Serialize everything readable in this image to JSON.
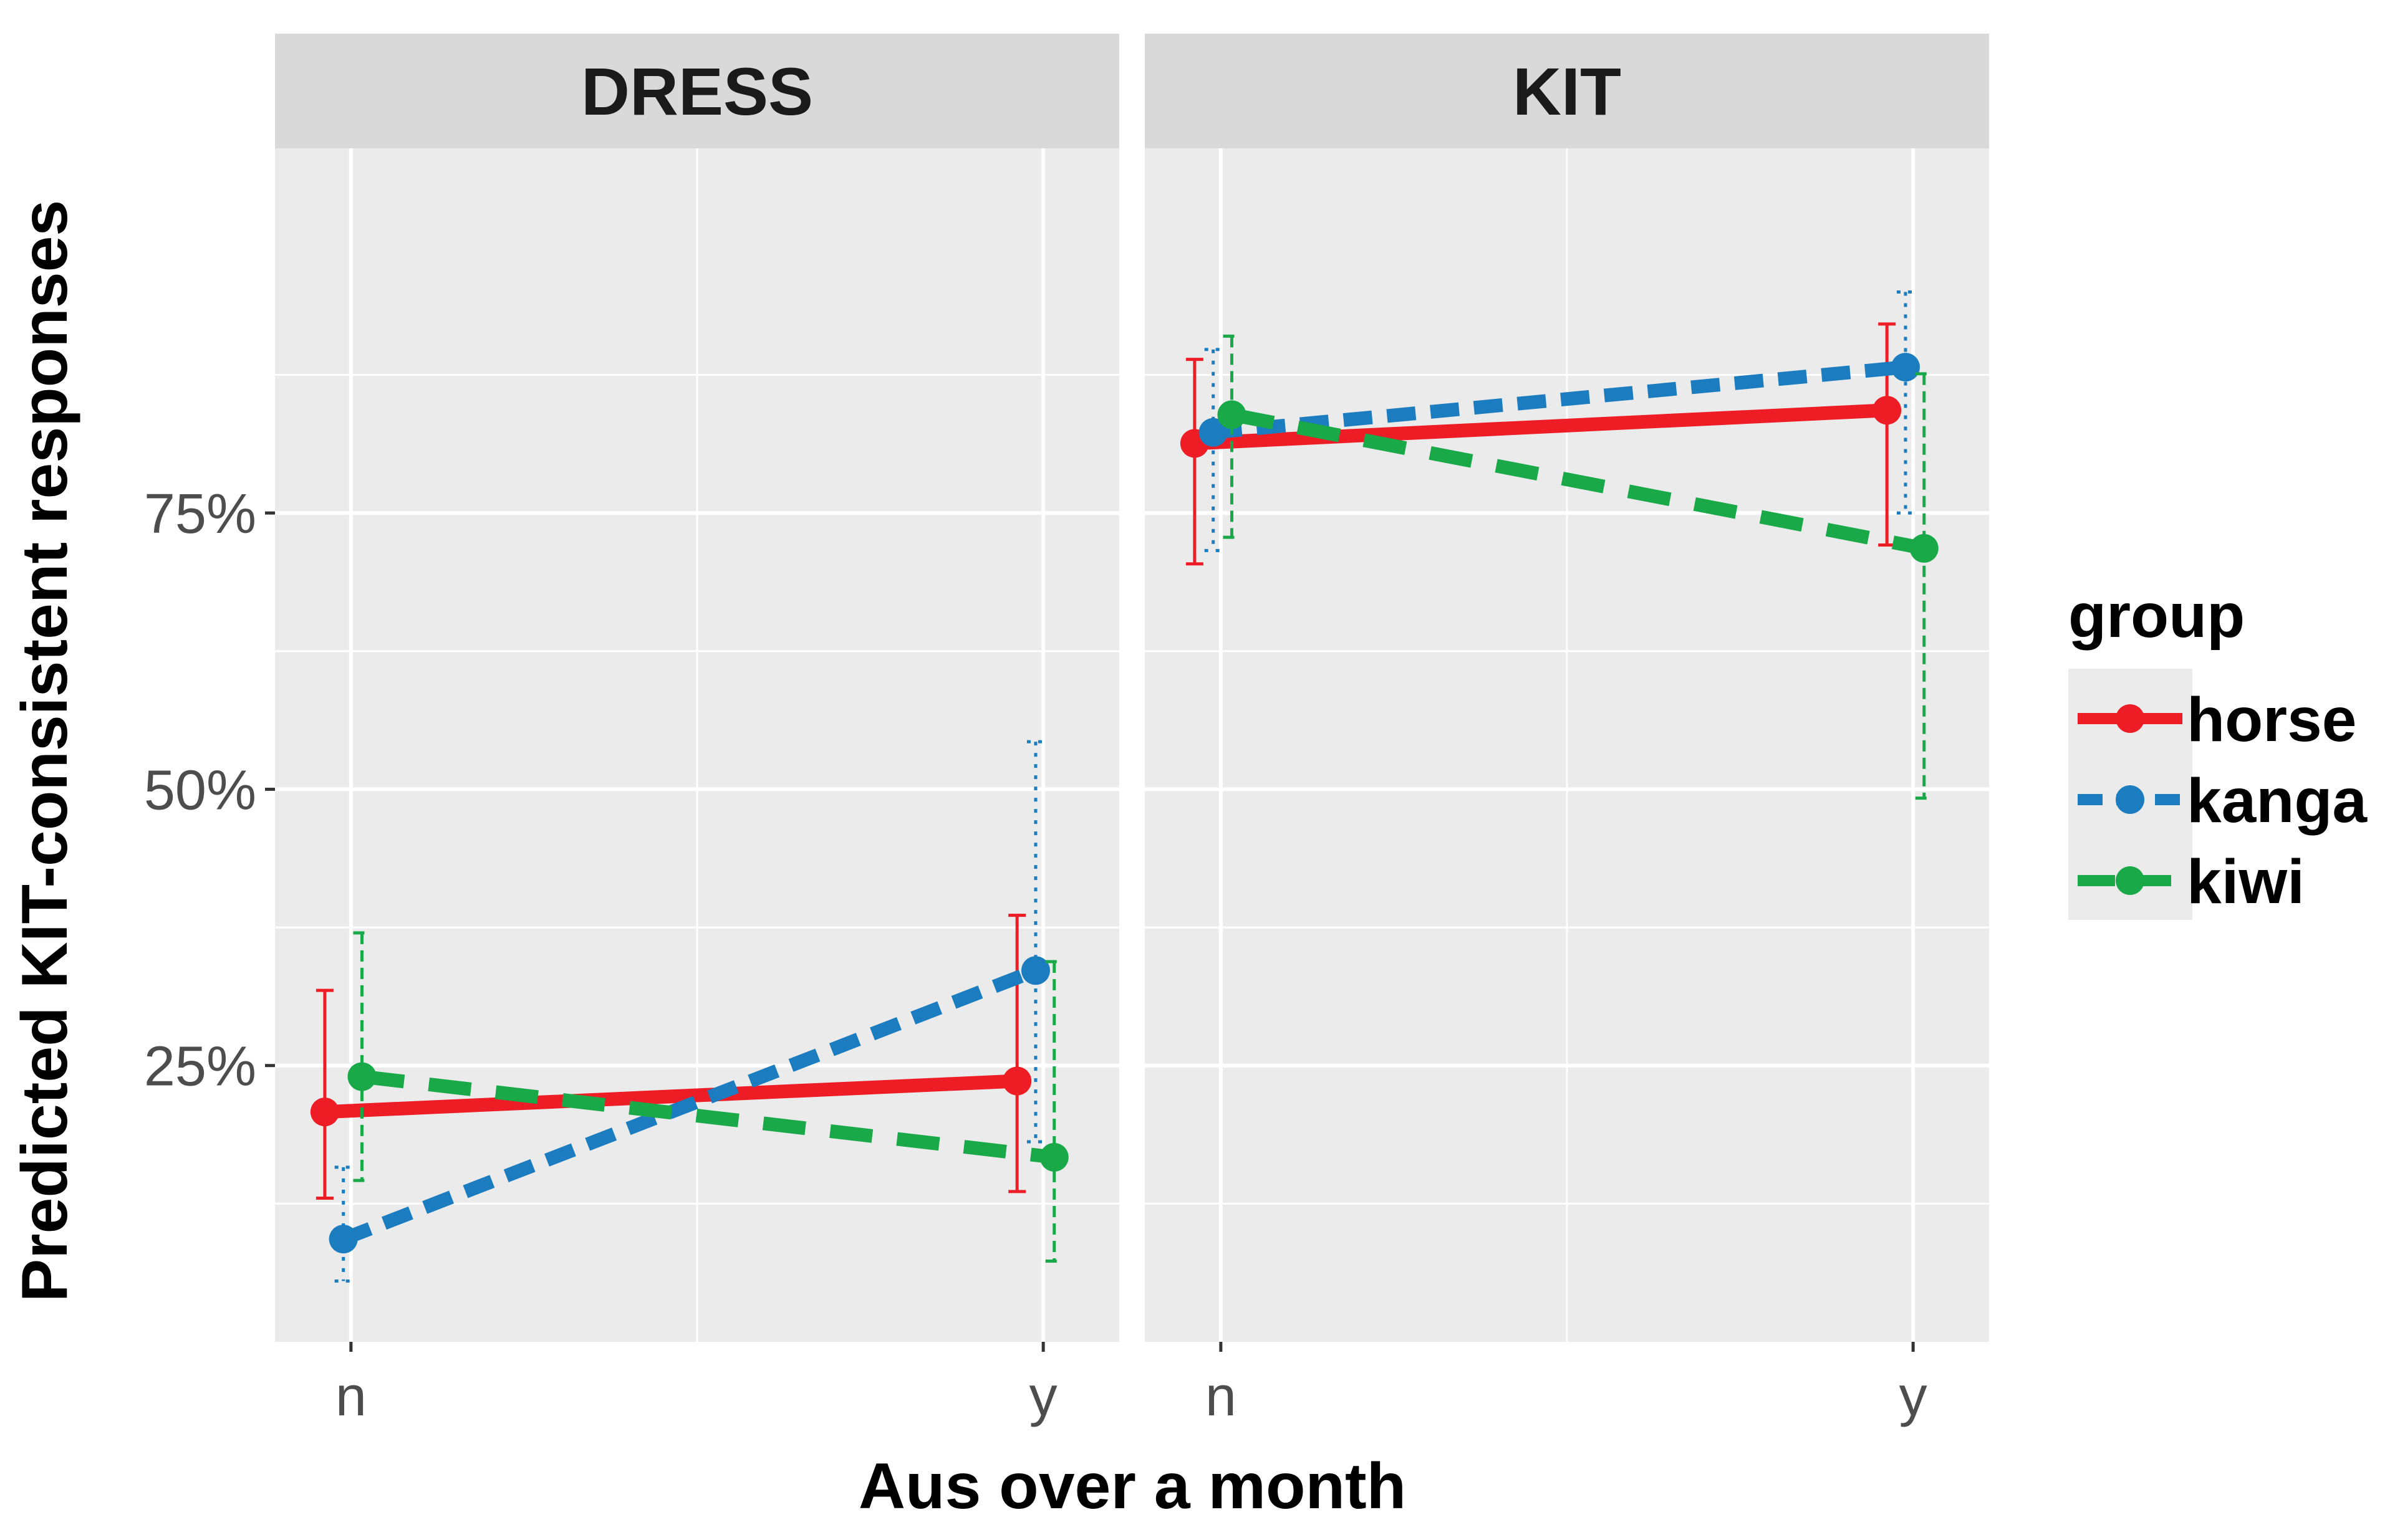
{
  "chart_data": {
    "type": "line",
    "facets": [
      "DRESS",
      "KIT"
    ],
    "categories": [
      "n",
      "y"
    ],
    "xlabel": "Aus over a month",
    "ylabel": "Predicted KIT-consistent responses",
    "ylim": [
      0,
      1.08
    ],
    "yticks": [
      0.25,
      0.5,
      0.75
    ],
    "ytick_labels": [
      "25%",
      "50%",
      "75%"
    ],
    "legend_title": "group",
    "legend_position": "right",
    "series": [
      {
        "name": "horse",
        "color": "#ee1c25",
        "dash": "solid",
        "DRESS": {
          "values": [
            0.208,
            0.236
          ],
          "lower": [
            0.13,
            0.136
          ],
          "upper": [
            0.318,
            0.386
          ]
        },
        "KIT": {
          "values": [
            0.813,
            0.843
          ],
          "lower": [
            0.704,
            0.721
          ],
          "upper": [
            0.889,
            0.921
          ]
        }
      },
      {
        "name": "kanga",
        "color": "#1b7dc0",
        "dash": "dotted",
        "DRESS": {
          "values": [
            0.093,
            0.336
          ],
          "lower": [
            0.055,
            0.181
          ],
          "upper": [
            0.158,
            0.543
          ]
        },
        "KIT": {
          "values": [
            0.823,
            0.882
          ],
          "lower": [
            0.716,
            0.75
          ],
          "upper": [
            0.898,
            0.95
          ]
        }
      },
      {
        "name": "kiwi",
        "color": "#19a949",
        "dash": "dashed",
        "DRESS": {
          "values": [
            0.24,
            0.167
          ],
          "lower": [
            0.146,
            0.073
          ],
          "upper": [
            0.37,
            0.344
          ]
        },
        "KIT": {
          "values": [
            0.839,
            0.718
          ],
          "lower": [
            0.728,
            0.492
          ],
          "upper": [
            0.91,
            0.876
          ]
        }
      }
    ]
  }
}
